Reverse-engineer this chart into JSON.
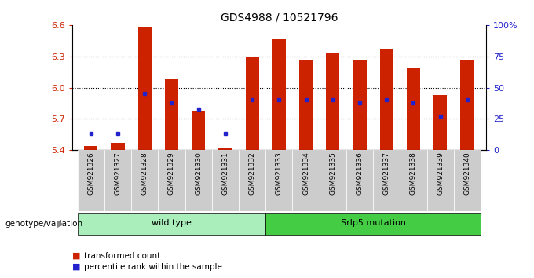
{
  "title": "GDS4988 / 10521796",
  "samples": [
    "GSM921326",
    "GSM921327",
    "GSM921328",
    "GSM921329",
    "GSM921330",
    "GSM921331",
    "GSM921332",
    "GSM921333",
    "GSM921334",
    "GSM921335",
    "GSM921336",
    "GSM921337",
    "GSM921338",
    "GSM921339",
    "GSM921340"
  ],
  "transformed_count": [
    5.44,
    5.47,
    6.58,
    6.09,
    5.78,
    5.42,
    6.3,
    6.46,
    6.27,
    6.33,
    6.27,
    6.37,
    6.19,
    5.93,
    6.27
  ],
  "percentile_rank": [
    13,
    13,
    45,
    38,
    33,
    13,
    40,
    40,
    40,
    40,
    38,
    40,
    38,
    27,
    40
  ],
  "y_min": 5.4,
  "y_max": 6.6,
  "y_ticks": [
    5.4,
    5.7,
    6.0,
    6.3,
    6.6
  ],
  "right_y_ticks": [
    0,
    25,
    50,
    75,
    100
  ],
  "right_y_tick_labels": [
    "0",
    "25",
    "50",
    "75",
    "100%"
  ],
  "bar_color": "#cc2200",
  "percentile_color": "#2222cc",
  "plot_bg_color": "#ffffff",
  "wild_type_color": "#aaeebb",
  "mutation_color": "#44cc44",
  "sample_bg_color": "#cccccc",
  "wild_type_label": "wild type",
  "mutation_label": "Srlp5 mutation",
  "genotype_label": "genotype/variation",
  "legend_count_label": "transformed count",
  "legend_percentile_label": "percentile rank within the sample",
  "n_wild": 7,
  "n_mut": 8,
  "bar_width": 0.5,
  "axis_label_color_left": "#cc2200",
  "axis_label_color_right": "#2222cc"
}
